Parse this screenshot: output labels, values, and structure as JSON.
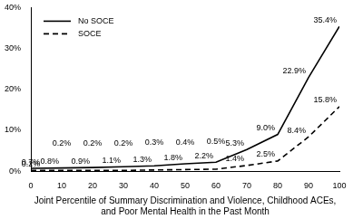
{
  "chart_data": {
    "type": "line",
    "x_label": "Joint Percentile of Summary Discrimination and Violence, Childhood ACEs, and Poor Mental Health in the Past Month",
    "x": [
      0,
      10,
      20,
      30,
      40,
      50,
      60,
      70,
      80,
      90,
      100
    ],
    "series": [
      {
        "name": "No SOCE",
        "color": "#000000",
        "line_style": "solid",
        "values": [
          0.7,
          0.8,
          0.9,
          1.1,
          1.3,
          1.8,
          2.2,
          5.3,
          9.0,
          22.9,
          35.4
        ],
        "value_labels": [
          "0.7%",
          "0.8%",
          "0.9%",
          "1.1%",
          "1.3%",
          "1.8%",
          "2.2%",
          "5.3%",
          "9.0%",
          "22.9%",
          "35.4%"
        ]
      },
      {
        "name": "SOCE",
        "color": "#000000",
        "line_style": "dashed",
        "values": [
          0.2,
          0.2,
          0.2,
          0.2,
          0.3,
          0.4,
          0.5,
          1.4,
          2.5,
          8.4,
          15.8
        ],
        "value_labels": [
          "0.2%",
          "0.2%",
          "0.2%",
          "0.2%",
          "0.3%",
          "0.4%",
          "0.5%",
          "1.4%",
          "2.5%",
          "8.4%",
          "15.8%"
        ]
      }
    ],
    "xlim": [
      0,
      100
    ],
    "xticks": [
      0,
      10,
      20,
      30,
      40,
      50,
      60,
      70,
      80,
      90,
      100
    ],
    "ylim": [
      0,
      40
    ],
    "yticks": [
      {
        "value": 0,
        "label": "0%"
      },
      {
        "value": 10,
        "label": "10%"
      },
      {
        "value": 20,
        "label": "20%"
      },
      {
        "value": 30,
        "label": "30%"
      },
      {
        "value": 40,
        "label": "40%"
      }
    ],
    "grid": false,
    "legend": "upper left",
    "data_labels": true,
    "marker": "none"
  }
}
